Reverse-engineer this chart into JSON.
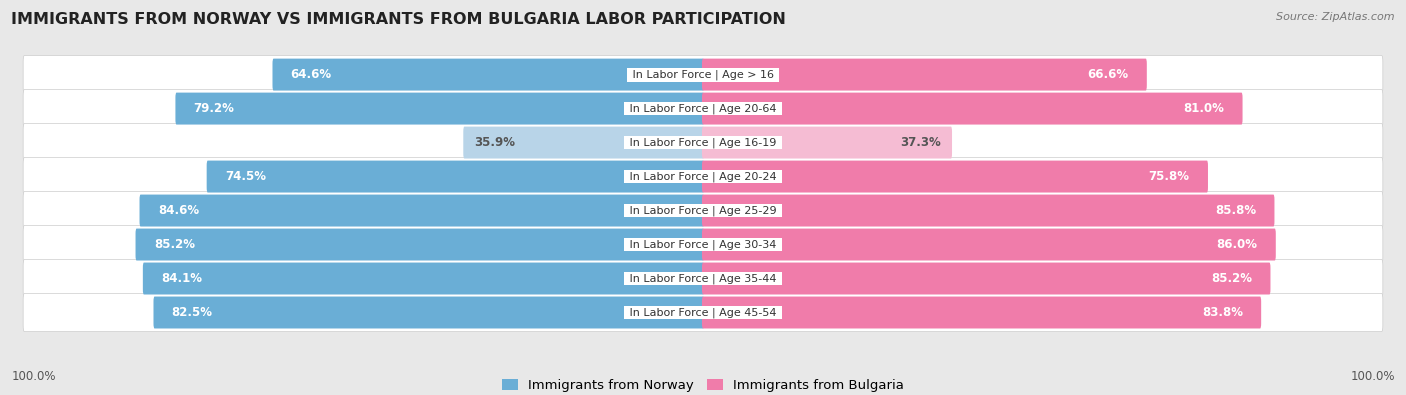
{
  "title": "IMMIGRANTS FROM NORWAY VS IMMIGRANTS FROM BULGARIA LABOR PARTICIPATION",
  "source": "Source: ZipAtlas.com",
  "categories": [
    "In Labor Force | Age > 16",
    "In Labor Force | Age 20-64",
    "In Labor Force | Age 16-19",
    "In Labor Force | Age 20-24",
    "In Labor Force | Age 25-29",
    "In Labor Force | Age 30-34",
    "In Labor Force | Age 35-44",
    "In Labor Force | Age 45-54"
  ],
  "norway_values": [
    64.6,
    79.2,
    35.9,
    74.5,
    84.6,
    85.2,
    84.1,
    82.5
  ],
  "bulgaria_values": [
    66.6,
    81.0,
    37.3,
    75.8,
    85.8,
    86.0,
    85.2,
    83.8
  ],
  "norway_color": "#6aaed6",
  "norway_color_light": "#b8d4e8",
  "bulgaria_color": "#f07caa",
  "bulgaria_color_light": "#f5bcd3",
  "bg_color": "#e8e8e8",
  "row_bg": "#f0f0f0",
  "max_val": 100.0,
  "legend_norway": "Immigrants from Norway",
  "legend_bulgaria": "Immigrants from Bulgaria",
  "label_fontsize": 8.5,
  "cat_fontsize": 8.0,
  "title_fontsize": 11.5
}
